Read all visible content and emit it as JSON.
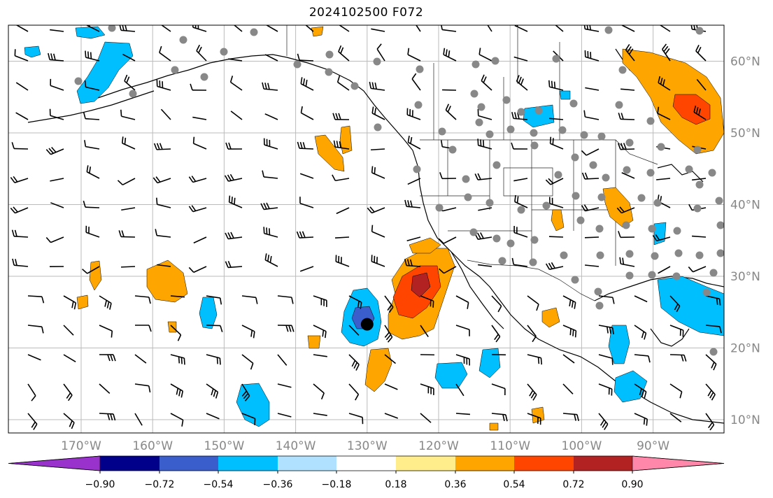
{
  "title": "2024102500 F072",
  "map": {
    "lon_ticks": [
      "170°W",
      "160°W",
      "150°W",
      "140°W",
      "130°W",
      "120°W",
      "110°W",
      "100°W",
      "90°W"
    ],
    "lat_ticks": [
      "60°N",
      "50°N",
      "40°N",
      "30°N",
      "20°N",
      "10°N"
    ],
    "lon_range": [
      -180,
      -80
    ],
    "lat_range": [
      8,
      63
    ],
    "storm_center": {
      "lon": -130,
      "lat": 23.3
    }
  },
  "colorbar": {
    "colors": [
      "#9932cc",
      "#00008b",
      "#3a5fcd",
      "#00bfff",
      "#b0e2ff",
      "#ffffff",
      "#ffec8b",
      "#ffa500",
      "#ff4500",
      "#b22222",
      "#ff88aa"
    ],
    "tick_labels": [
      "−0.90",
      "−0.72",
      "−0.54",
      "−0.36",
      "−0.18",
      "0.18",
      "0.36",
      "0.54",
      "0.72",
      "0.90"
    ]
  }
}
